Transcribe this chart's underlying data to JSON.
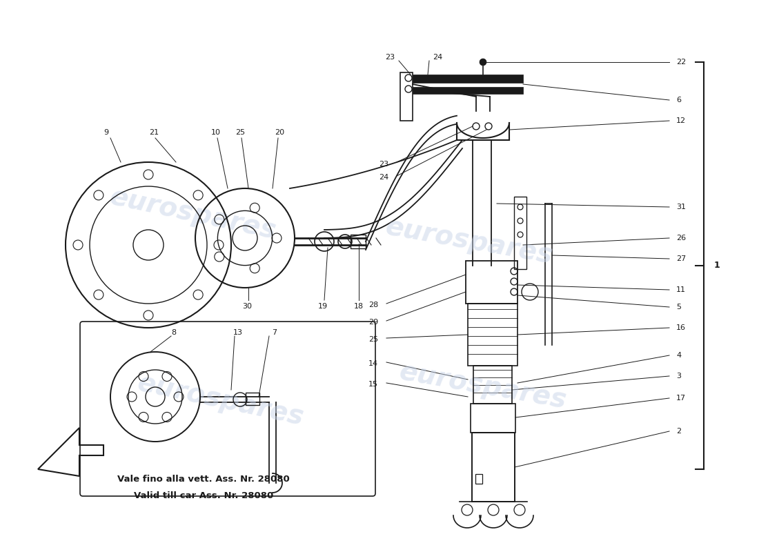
{
  "background_color": "#ffffff",
  "watermark_text": "eurospares",
  "watermark_color": "#c8d4e8",
  "line_color": "#1a1a1a",
  "text_color": "#1a1a1a",
  "figsize": [
    11.0,
    8.0
  ],
  "dpi": 100,
  "caption_line1": "Vale fino alla vett. Ass. Nr. 28080",
  "caption_line2": "Valid till car Ass. Nr. 28080"
}
